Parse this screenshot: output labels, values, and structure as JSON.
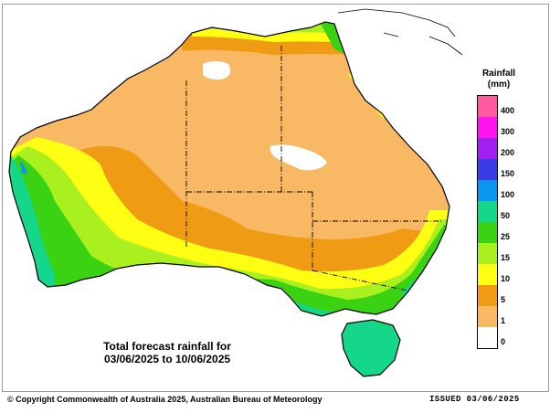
{
  "legend": {
    "title": "Rainfall",
    "unit": "(mm)",
    "levels": [
      {
        "label": "400",
        "color": "#ff5aa0"
      },
      {
        "label": "300",
        "color": "#ff14f0"
      },
      {
        "label": "200",
        "color": "#a020f0"
      },
      {
        "label": "150",
        "color": "#3c3ce6"
      },
      {
        "label": "100",
        "color": "#0a96f0"
      },
      {
        "label": "50",
        "color": "#14d78c"
      },
      {
        "label": "25",
        "color": "#3cd214"
      },
      {
        "label": "15",
        "color": "#aaf01e"
      },
      {
        "label": "10",
        "color": "#ffff14"
      },
      {
        "label": "5",
        "color": "#f09b14"
      },
      {
        "label": "1",
        "color": "#f8b864"
      },
      {
        "label": "0",
        "color": "#ffffff"
      }
    ]
  },
  "caption": {
    "line1": "Total forecast rainfall for",
    "line2": "03/06/2025 to 10/06/2025"
  },
  "footer": {
    "copyright": "© Copyright Commonwealth of Australia 2025, Australian Bureau of Meteorology",
    "issued": "ISSUED 03/06/2025"
  }
}
